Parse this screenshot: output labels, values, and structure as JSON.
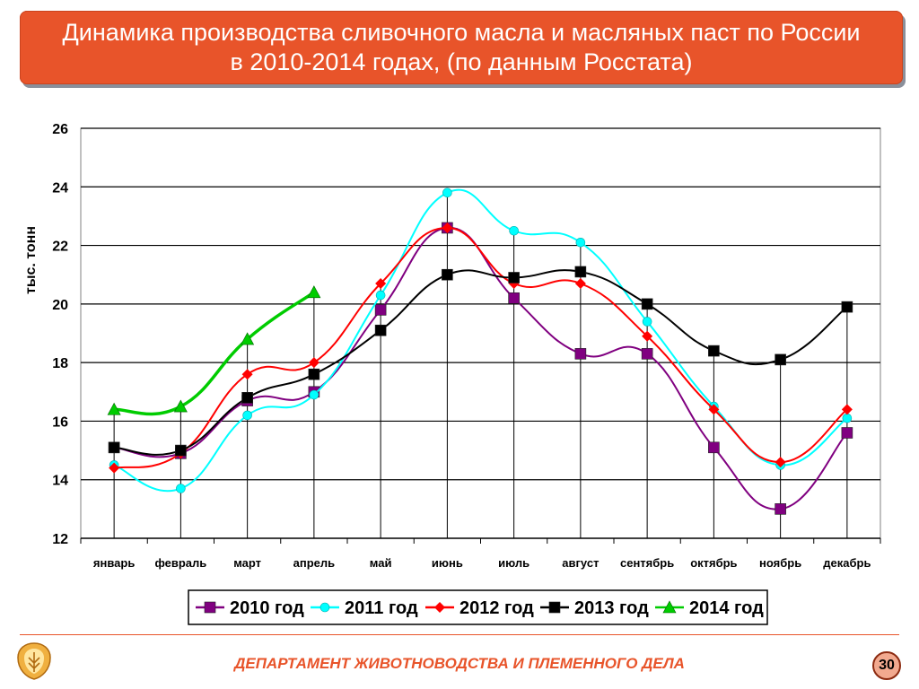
{
  "header": {
    "title": "Динамика производства сливочного масла и масляных паст по России\nв 2010-2014 годах, (по данным Росстата)"
  },
  "chart_data": {
    "type": "line",
    "ylabel": "тыс. тонн",
    "xlabel": "",
    "ylim": [
      12,
      26
    ],
    "yticks": [
      12,
      14,
      16,
      18,
      20,
      22,
      24,
      26
    ],
    "grid": "horizontal",
    "legend_position": "bottom",
    "categories": [
      "январь",
      "февраль",
      "март",
      "апрель",
      "май",
      "июнь",
      "июль",
      "август",
      "сентябрь",
      "октябрь",
      "ноябрь",
      "декабрь"
    ],
    "series": [
      {
        "name": "2010 год",
        "color": "#800080",
        "marker": "square",
        "values": [
          15.1,
          14.9,
          16.7,
          17.0,
          19.8,
          22.6,
          20.2,
          18.3,
          18.3,
          15.1,
          13.0,
          15.6
        ]
      },
      {
        "name": "2011 год",
        "color": "#00ffff",
        "marker": "circle",
        "values": [
          14.5,
          13.7,
          16.2,
          16.9,
          20.3,
          23.8,
          22.5,
          22.1,
          19.4,
          16.5,
          14.5,
          16.1
        ]
      },
      {
        "name": "2012 год",
        "color": "#ff0000",
        "marker": "diamond",
        "values": [
          14.4,
          14.9,
          17.6,
          18.0,
          20.7,
          22.6,
          20.7,
          20.7,
          18.9,
          16.4,
          14.6,
          16.4
        ]
      },
      {
        "name": "2013 год",
        "color": "#000000",
        "marker": "square",
        "values": [
          15.1,
          15.0,
          16.8,
          17.6,
          19.1,
          21.0,
          20.9,
          21.1,
          20.0,
          18.4,
          18.1,
          19.9
        ]
      },
      {
        "name": "2014 год",
        "color": "#00cc00",
        "marker": "triangle",
        "values": [
          16.4,
          16.5,
          18.8,
          20.4,
          null,
          null,
          null,
          null,
          null,
          null,
          null,
          null
        ]
      }
    ]
  },
  "footer": {
    "department": "ДЕПАРТАМЕНТ ЖИВОТНОВОДСТВА И ПЛЕМЕННОГО ДЕЛА",
    "page_number": "30",
    "logo_icon": "emblem-icon"
  }
}
